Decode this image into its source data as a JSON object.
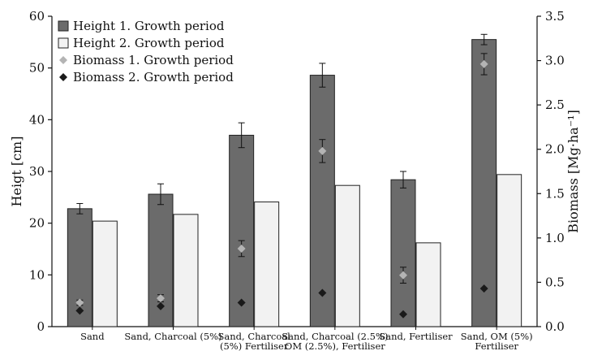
{
  "chart_data": {
    "type": "bar",
    "categories": [
      [
        "Sand"
      ],
      [
        "Sand, Charcoal (5%)"
      ],
      [
        "Sand, Charcoal",
        "(5%) Fertiliser"
      ],
      [
        "Sand, Charcoal (2.5%)",
        "OM (2.5%), Fertiliser"
      ],
      [
        "Sand, Fertiliser"
      ],
      [
        "Sand, OM (5%)",
        "Fertiliser"
      ]
    ],
    "ylabel": "Heigt [cm]",
    "ylabel_right": "Biomass [Mg·ha⁻¹]",
    "ylim": [
      0,
      60
    ],
    "ylim_right": [
      0,
      3.5
    ],
    "yticks": [
      0,
      10,
      20,
      30,
      40,
      50,
      60
    ],
    "yticks_right": [
      "0.0",
      "0.5",
      "1.0",
      "1.5",
      "2.0",
      "2.5",
      "3.0",
      "3.5"
    ],
    "legend_position": "top-left",
    "series": [
      {
        "name": "Height 1. Growth period",
        "kind": "bar",
        "axis": "left",
        "color": "#6b6b6b",
        "values": [
          22.8,
          25.6,
          37.0,
          48.6,
          28.4,
          55.5
        ],
        "errors": [
          1.0,
          2.0,
          2.4,
          2.3,
          1.6,
          1.0
        ]
      },
      {
        "name": "Height 2. Growth period",
        "kind": "bar",
        "axis": "left",
        "color": "#f2f2f2",
        "values": [
          20.4,
          21.7,
          24.1,
          27.3,
          16.2,
          29.4
        ],
        "errors": []
      },
      {
        "name": "Biomass 1. Growth period",
        "kind": "point",
        "axis": "right",
        "color": "#b4b4b4",
        "values": [
          0.27,
          0.32,
          0.88,
          1.98,
          0.58,
          2.96
        ],
        "errors": [
          0.03,
          0.04,
          0.09,
          0.13,
          0.09,
          0.12
        ]
      },
      {
        "name": "Biomass 2. Growth period",
        "kind": "point",
        "axis": "right",
        "color": "#1a1a1a",
        "values": [
          0.18,
          0.23,
          0.27,
          0.38,
          0.14,
          0.43
        ],
        "errors": []
      }
    ]
  }
}
